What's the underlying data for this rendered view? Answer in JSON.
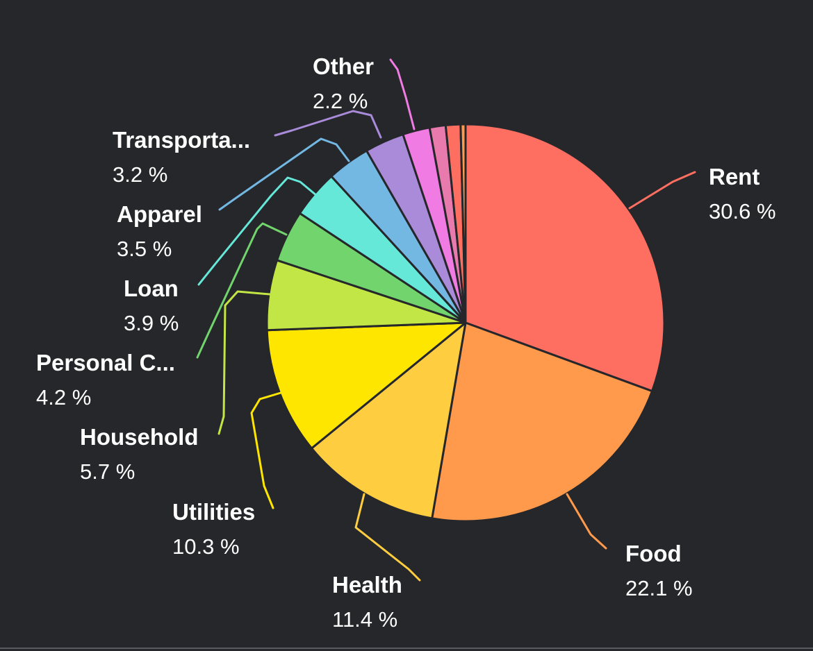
{
  "chart_data": {
    "type": "pie",
    "start_angle_deg": 0,
    "direction": "clockwise",
    "slice_border_color": "#26272b",
    "label_color": "#ffffff",
    "background": "#26272b",
    "slices": [
      {
        "label": "Rent",
        "value": 30.6,
        "value_text": "30.6 %",
        "color": "#ff6f61"
      },
      {
        "label": "Food",
        "value": 22.1,
        "value_text": "22.1 %",
        "color": "#ff9a4d"
      },
      {
        "label": "Health",
        "value": 11.4,
        "value_text": "11.4 %",
        "color": "#ffcd40"
      },
      {
        "label": "Utilities",
        "value": 10.3,
        "value_text": "10.3 %",
        "color": "#ffe600"
      },
      {
        "label": "Household",
        "value": 5.7,
        "value_text": "5.7 %",
        "color": "#c2e645"
      },
      {
        "label": "Personal C...",
        "value": 4.2,
        "value_text": "4.2 %",
        "color": "#72d46c"
      },
      {
        "label": "Loan",
        "value": 3.9,
        "value_text": "3.9 %",
        "color": "#66e8d9"
      },
      {
        "label": "Apparel",
        "value": 3.5,
        "value_text": "3.5 %",
        "color": "#72b8e3"
      },
      {
        "label": "Transporta...",
        "value": 3.2,
        "value_text": "3.2 %",
        "color": "#a98bd9"
      },
      {
        "label": "Other",
        "value": 2.2,
        "value_text": "2.2 %",
        "color": "#ef7be3"
      },
      {
        "label": "",
        "value": 1.3,
        "value_text": "",
        "color": "#e87aae"
      },
      {
        "label": "",
        "value": 1.2,
        "value_text": "",
        "color": "#ff6f61"
      },
      {
        "label": "",
        "value": 0.4,
        "value_text": "",
        "color": "#ff9a4d"
      }
    ]
  }
}
